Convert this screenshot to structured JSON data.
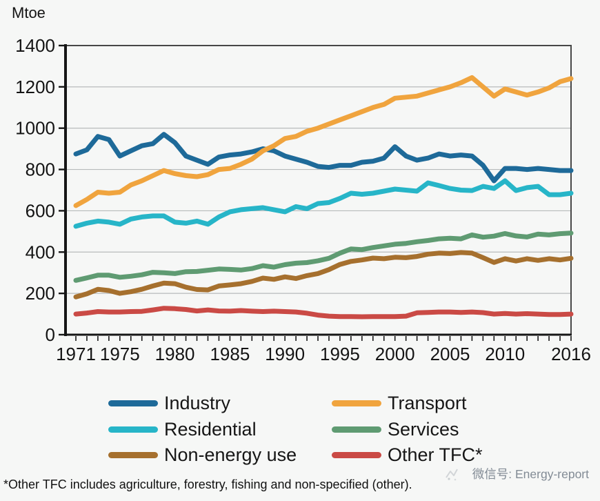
{
  "footnote": "*Other TFC includes agriculture, forestry, fishing and non-specified (other).",
  "watermark": "微信号: Energy-report",
  "chart_data": {
    "type": "line",
    "title": "",
    "ylabel": "Mtoe",
    "xlabel": "",
    "ylim": [
      0,
      1400
    ],
    "ytick_interval": 200,
    "grid": "horizontal",
    "legend_position": "bottom",
    "x": [
      1971,
      1972,
      1973,
      1974,
      1975,
      1976,
      1977,
      1978,
      1979,
      1980,
      1981,
      1982,
      1983,
      1984,
      1985,
      1986,
      1987,
      1988,
      1989,
      1990,
      1991,
      1992,
      1993,
      1994,
      1995,
      1996,
      1997,
      1998,
      1999,
      2000,
      2001,
      2002,
      2003,
      2004,
      2005,
      2006,
      2007,
      2008,
      2009,
      2010,
      2011,
      2012,
      2013,
      2014,
      2015,
      2016
    ],
    "xtick_labels": [
      1971,
      1975,
      1980,
      1985,
      1990,
      1995,
      2000,
      2005,
      2010,
      2016
    ],
    "series": [
      {
        "name": "Industry",
        "color": "#1e6a99",
        "values": [
          875,
          895,
          960,
          945,
          865,
          890,
          915,
          925,
          970,
          930,
          865,
          845,
          825,
          860,
          870,
          875,
          885,
          900,
          890,
          865,
          850,
          835,
          815,
          810,
          820,
          820,
          835,
          840,
          855,
          910,
          865,
          845,
          855,
          875,
          865,
          870,
          865,
          820,
          745,
          805,
          805,
          800,
          805,
          800,
          795,
          795
        ]
      },
      {
        "name": "Transport",
        "color": "#f0a43e",
        "values": [
          625,
          655,
          690,
          685,
          690,
          725,
          745,
          770,
          795,
          780,
          770,
          765,
          775,
          800,
          805,
          825,
          850,
          890,
          915,
          950,
          960,
          985,
          1000,
          1020,
          1040,
          1060,
          1080,
          1100,
          1115,
          1145,
          1150,
          1155,
          1170,
          1185,
          1200,
          1220,
          1245,
          1200,
          1155,
          1190,
          1175,
          1160,
          1175,
          1195,
          1225,
          1240
        ]
      },
      {
        "name": "Residential",
        "color": "#27b5c8",
        "values": [
          525,
          540,
          550,
          545,
          535,
          560,
          570,
          575,
          575,
          545,
          540,
          550,
          535,
          570,
          595,
          605,
          610,
          615,
          605,
          595,
          620,
          610,
          635,
          640,
          660,
          685,
          680,
          685,
          695,
          705,
          700,
          695,
          735,
          722,
          708,
          700,
          698,
          718,
          708,
          745,
          698,
          712,
          718,
          678,
          678,
          685
        ]
      },
      {
        "name": "Services",
        "color": "#5f9b72",
        "values": [
          263,
          275,
          288,
          288,
          278,
          283,
          290,
          302,
          300,
          296,
          305,
          306,
          312,
          318,
          316,
          313,
          320,
          334,
          327,
          339,
          346,
          349,
          358,
          370,
          395,
          415,
          412,
          422,
          430,
          438,
          442,
          450,
          456,
          464,
          467,
          464,
          483,
          472,
          477,
          490,
          478,
          473,
          487,
          483,
          489,
          492
        ]
      },
      {
        "name": "Non-energy use",
        "color": "#a6702e",
        "values": [
          183,
          198,
          220,
          214,
          200,
          208,
          220,
          236,
          250,
          247,
          230,
          219,
          217,
          236,
          241,
          247,
          258,
          274,
          268,
          280,
          272,
          286,
          296,
          315,
          340,
          355,
          362,
          371,
          368,
          375,
          373,
          379,
          390,
          395,
          393,
          398,
          395,
          373,
          350,
          368,
          357,
          368,
          360,
          368,
          362,
          370
        ]
      },
      {
        "name": "Other TFC*",
        "color": "#ca4a45",
        "values": [
          100,
          105,
          112,
          110,
          110,
          112,
          113,
          120,
          128,
          126,
          122,
          115,
          120,
          115,
          114,
          117,
          114,
          112,
          114,
          112,
          110,
          104,
          95,
          90,
          88,
          88,
          87,
          88,
          88,
          88,
          90,
          106,
          108,
          110,
          110,
          108,
          110,
          107,
          100,
          103,
          100,
          102,
          100,
          98,
          98,
          100
        ]
      }
    ]
  }
}
